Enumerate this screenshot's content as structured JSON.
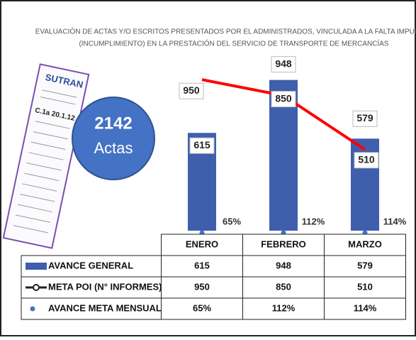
{
  "chart_data": {
    "type": "bar",
    "title": [
      "EVALUACIÓN DE ACTAS Y/O ESCRITOS PRESENTADOS POR EL ADMINISTRADOS, VINCULADA A LA FALTA IMPUESTA",
      "(INCUMPLIMIENTO) EN LA PRESTACIÓN DEL SERVICIO DE TRANSPORTE DE MERCANCÍAS"
    ],
    "categories": [
      "ENERO",
      "FEBRERO",
      "MARZO"
    ],
    "series": [
      {
        "name": "AVANCE GENERAL",
        "type": "bar",
        "color": "#3f5fad",
        "values": [
          615,
          948,
          579
        ]
      },
      {
        "name": "META POI (N° INFORMES)",
        "type": "line",
        "color": "#ff0000",
        "values": [
          950,
          850,
          510
        ]
      },
      {
        "name": "AVANCE META MENSUAL POI",
        "type": "scatter",
        "color": "#4472c4",
        "values": [
          65,
          112,
          114
        ],
        "value_labels": [
          "65%",
          "112%",
          "114%"
        ]
      }
    ],
    "ylim": [
      0,
      1000
    ],
    "badge": {
      "value": 2142,
      "label": "Actas"
    },
    "ticket": {
      "brand": "SUTRAN",
      "code": "C.1a 20.1.12"
    }
  }
}
